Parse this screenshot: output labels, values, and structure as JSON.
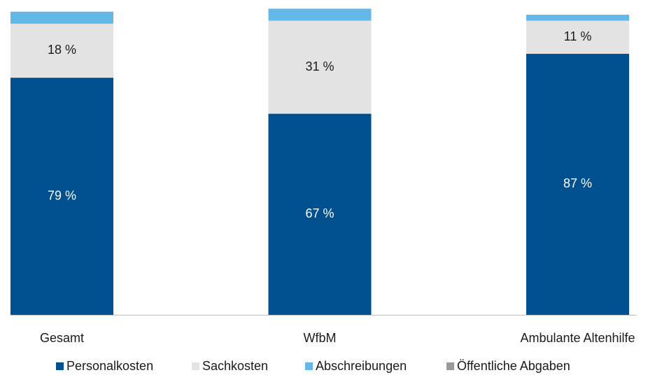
{
  "chart_data": {
    "type": "stacked_bar",
    "categories": [
      "Gesamt",
      "WfbM",
      "Ambulante Altenhilfe"
    ],
    "series": [
      {
        "name": "Personalkosten",
        "color": "#00508f",
        "values": [
          79,
          67,
          87
        ],
        "value_labels": [
          "79 %",
          "67 %",
          "87 %"
        ]
      },
      {
        "name": "Sachkosten",
        "color": "#e3e3e3",
        "values": [
          18,
          31,
          11
        ],
        "value_labels": [
          "18 %",
          "31 %",
          "11 %"
        ]
      },
      {
        "name": "Abschreibungen",
        "color": "#63b8e8",
        "values": [
          4,
          4,
          2
        ]
      },
      {
        "name": "Öffentliche Abgaben",
        "color": "#999999",
        "values": [
          0,
          0,
          0
        ]
      }
    ],
    "ylim": [
      0,
      100
    ]
  }
}
